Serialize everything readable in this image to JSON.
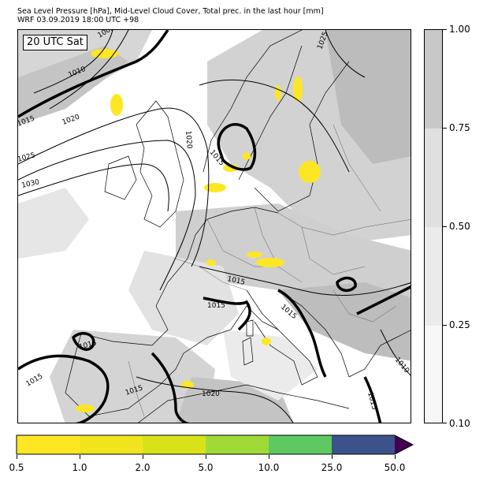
{
  "header": {
    "line1": "Sea Level Pressure [hPa], Mid-Level Cloud Cover, Total prec. in the last hour [mm]",
    "line2": "WRF 03.09.2019 18:00 UTC +98"
  },
  "map": {
    "time_label": "20 UTC Sat",
    "isobar_labels": [
      "1005",
      "1010",
      "1015",
      "1020",
      "1025",
      "1030",
      "1020",
      "1015",
      "1025",
      "1015",
      "1015",
      "1015",
      "1015",
      "1015",
      "1020",
      "1015",
      "1010",
      "1015"
    ],
    "colors": {
      "land_cloud_light": "#e6e6e6",
      "land_cloud_mid": "#d4d4d4",
      "land_cloud_dark": "#bdbdbd",
      "precip_yellow": "#fde725",
      "isobar": "#000000"
    }
  },
  "cloud_colorbar": {
    "tick_labels": [
      "1.00",
      "0.75",
      "0.50",
      "0.25",
      "0.10"
    ],
    "colors": [
      "#c8c8c8",
      "#e0e0e0",
      "#ebebeb",
      "#f7f7f7"
    ]
  },
  "precip_colorbar": {
    "tick_labels": [
      "0.5",
      "1.0",
      "2.0",
      "5.0",
      "10.0",
      "25.0",
      "50.0"
    ],
    "colors": [
      "#fde725",
      "#f0e41f",
      "#d8e219",
      "#a0da39",
      "#5ec962",
      "#2fb47c",
      "#3b528b"
    ],
    "extend_color": "#440154"
  }
}
